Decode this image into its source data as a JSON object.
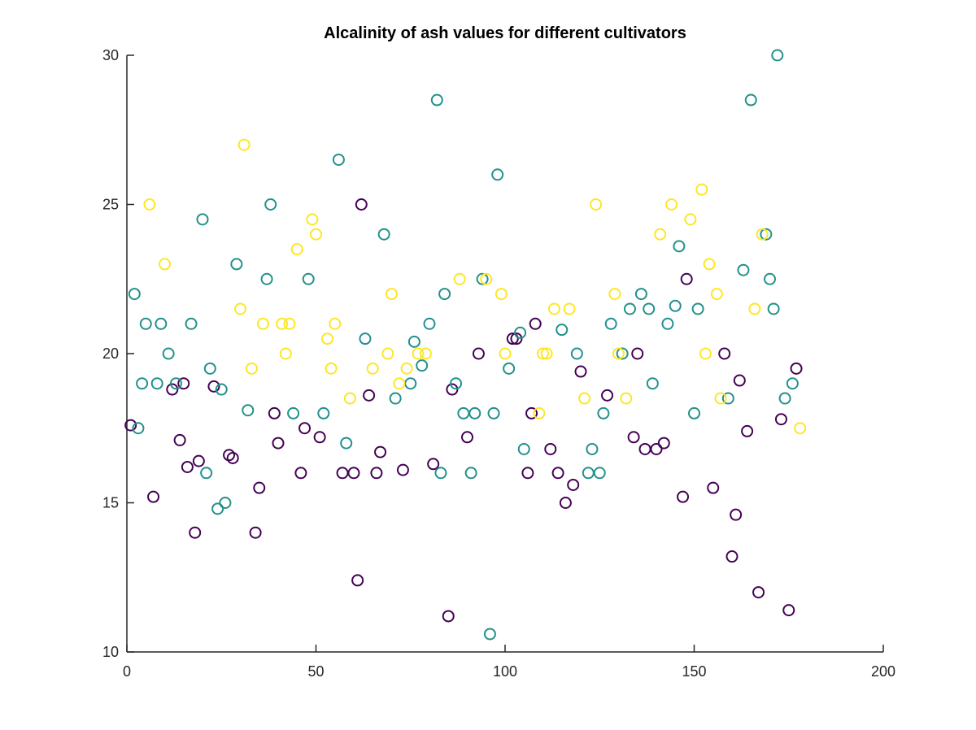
{
  "chart_data": {
    "type": "scatter",
    "title": "Alcalinity of ash values for different cultivators",
    "xlabel": "",
    "ylabel": "",
    "xlim": [
      0,
      200
    ],
    "ylim": [
      10,
      30
    ],
    "xticks": [
      0,
      50,
      100,
      150,
      200
    ],
    "yticks": [
      10,
      15,
      20,
      25,
      30
    ],
    "grid": false,
    "marker": "open-circle",
    "colors": {
      "class1": "#440154",
      "class2": "#21918c",
      "class3": "#fde725"
    },
    "series": [
      {
        "key": "class1",
        "points": [
          [
            1,
            17.6
          ],
          [
            7,
            15.2
          ],
          [
            12,
            18.8
          ],
          [
            14,
            17.1
          ],
          [
            15,
            19.0
          ],
          [
            16,
            16.2
          ],
          [
            18,
            14.0
          ],
          [
            19,
            16.4
          ],
          [
            23,
            18.9
          ],
          [
            27,
            16.6
          ],
          [
            28,
            16.5
          ],
          [
            34,
            14.0
          ],
          [
            35,
            15.5
          ],
          [
            39,
            18.0
          ],
          [
            40,
            17.0
          ],
          [
            46,
            16.0
          ],
          [
            47,
            17.5
          ],
          [
            51,
            17.2
          ],
          [
            57,
            16.0
          ],
          [
            60,
            16.0
          ],
          [
            61,
            12.4
          ],
          [
            62,
            25.0
          ],
          [
            64,
            18.6
          ],
          [
            66,
            16.0
          ],
          [
            67,
            16.7
          ],
          [
            73,
            16.1
          ],
          [
            81,
            16.3
          ],
          [
            85,
            11.2
          ],
          [
            86,
            18.8
          ],
          [
            90,
            17.2
          ],
          [
            93,
            20.0
          ],
          [
            102,
            20.5
          ],
          [
            103,
            20.5
          ],
          [
            106,
            16.0
          ],
          [
            107,
            18.0
          ],
          [
            108,
            21.0
          ],
          [
            112,
            16.8
          ],
          [
            114,
            16.0
          ],
          [
            116,
            15.0
          ],
          [
            118,
            15.6
          ],
          [
            120,
            19.4
          ],
          [
            127,
            18.6
          ],
          [
            134,
            17.2
          ],
          [
            135,
            20.0
          ],
          [
            137,
            16.8
          ],
          [
            140,
            16.8
          ],
          [
            142,
            17.0
          ],
          [
            147,
            15.2
          ],
          [
            148,
            22.5
          ],
          [
            155,
            15.5
          ],
          [
            158,
            20.0
          ],
          [
            160,
            13.2
          ],
          [
            161,
            14.6
          ],
          [
            162,
            19.1
          ],
          [
            164,
            17.4
          ],
          [
            167,
            12.0
          ],
          [
            173,
            17.8
          ],
          [
            175,
            11.4
          ],
          [
            177,
            19.5
          ]
        ]
      },
      {
        "key": "class2",
        "points": [
          [
            2,
            22.0
          ],
          [
            3,
            17.5
          ],
          [
            4,
            19.0
          ],
          [
            5,
            21.0
          ],
          [
            8,
            19.0
          ],
          [
            9,
            21.0
          ],
          [
            11,
            20.0
          ],
          [
            13,
            19.0
          ],
          [
            17,
            21.0
          ],
          [
            20,
            24.5
          ],
          [
            21,
            16.0
          ],
          [
            22,
            19.5
          ],
          [
            24,
            14.8
          ],
          [
            25,
            18.8
          ],
          [
            26,
            15.0
          ],
          [
            29,
            23.0
          ],
          [
            32,
            18.1
          ],
          [
            37,
            22.5
          ],
          [
            38,
            25.0
          ],
          [
            44,
            18.0
          ],
          [
            48,
            22.5
          ],
          [
            52,
            18.0
          ],
          [
            56,
            26.5
          ],
          [
            58,
            17.0
          ],
          [
            63,
            20.5
          ],
          [
            68,
            24.0
          ],
          [
            71,
            18.5
          ],
          [
            75,
            19.0
          ],
          [
            76,
            20.4
          ],
          [
            78,
            19.6
          ],
          [
            80,
            21.0
          ],
          [
            82,
            28.5
          ],
          [
            83,
            16.0
          ],
          [
            84,
            22.0
          ],
          [
            87,
            19.0
          ],
          [
            89,
            18.0
          ],
          [
            91,
            16.0
          ],
          [
            92,
            18.0
          ],
          [
            94,
            22.5
          ],
          [
            96,
            10.6
          ],
          [
            97,
            18.0
          ],
          [
            98,
            26.0
          ],
          [
            101,
            19.5
          ],
          [
            104,
            20.7
          ],
          [
            105,
            16.8
          ],
          [
            115,
            20.8
          ],
          [
            119,
            20.0
          ],
          [
            122,
            16.0
          ],
          [
            123,
            16.8
          ],
          [
            125,
            16.0
          ],
          [
            126,
            18.0
          ],
          [
            128,
            21.0
          ],
          [
            131,
            20.0
          ],
          [
            133,
            21.5
          ],
          [
            136,
            22.0
          ],
          [
            138,
            21.5
          ],
          [
            139,
            19.0
          ],
          [
            143,
            21.0
          ],
          [
            145,
            21.6
          ],
          [
            146,
            23.6
          ],
          [
            150,
            18.0
          ],
          [
            151,
            21.5
          ],
          [
            159,
            18.5
          ],
          [
            163,
            22.8
          ],
          [
            165,
            28.5
          ],
          [
            169,
            24.0
          ],
          [
            170,
            22.5
          ],
          [
            171,
            21.5
          ],
          [
            172,
            30.0
          ],
          [
            174,
            18.5
          ],
          [
            176,
            19.0
          ]
        ]
      },
      {
        "key": "class3",
        "points": [
          [
            6,
            25.0
          ],
          [
            10,
            23.0
          ],
          [
            30,
            21.5
          ],
          [
            31,
            27.0
          ],
          [
            33,
            19.5
          ],
          [
            36,
            21.0
          ],
          [
            41,
            21.0
          ],
          [
            42,
            20.0
          ],
          [
            43,
            21.0
          ],
          [
            45,
            23.5
          ],
          [
            49,
            24.5
          ],
          [
            50,
            24.0
          ],
          [
            53,
            20.5
          ],
          [
            54,
            19.5
          ],
          [
            55,
            21.0
          ],
          [
            59,
            18.5
          ],
          [
            65,
            19.5
          ],
          [
            69,
            20.0
          ],
          [
            70,
            22.0
          ],
          [
            72,
            19.0
          ],
          [
            74,
            19.5
          ],
          [
            77,
            20.0
          ],
          [
            79,
            20.0
          ],
          [
            88,
            22.5
          ],
          [
            95,
            22.5
          ],
          [
            99,
            22.0
          ],
          [
            100,
            20.0
          ],
          [
            109,
            18.0
          ],
          [
            110,
            20.0
          ],
          [
            111,
            20.0
          ],
          [
            113,
            21.5
          ],
          [
            117,
            21.5
          ],
          [
            121,
            18.5
          ],
          [
            124,
            25.0
          ],
          [
            129,
            22.0
          ],
          [
            130,
            20.0
          ],
          [
            132,
            18.5
          ],
          [
            141,
            24.0
          ],
          [
            144,
            25.0
          ],
          [
            149,
            24.5
          ],
          [
            152,
            25.5
          ],
          [
            153,
            20.0
          ],
          [
            154,
            23.0
          ],
          [
            156,
            22.0
          ],
          [
            157,
            18.5
          ],
          [
            166,
            21.5
          ],
          [
            168,
            24.0
          ],
          [
            178,
            17.5
          ]
        ]
      }
    ]
  }
}
